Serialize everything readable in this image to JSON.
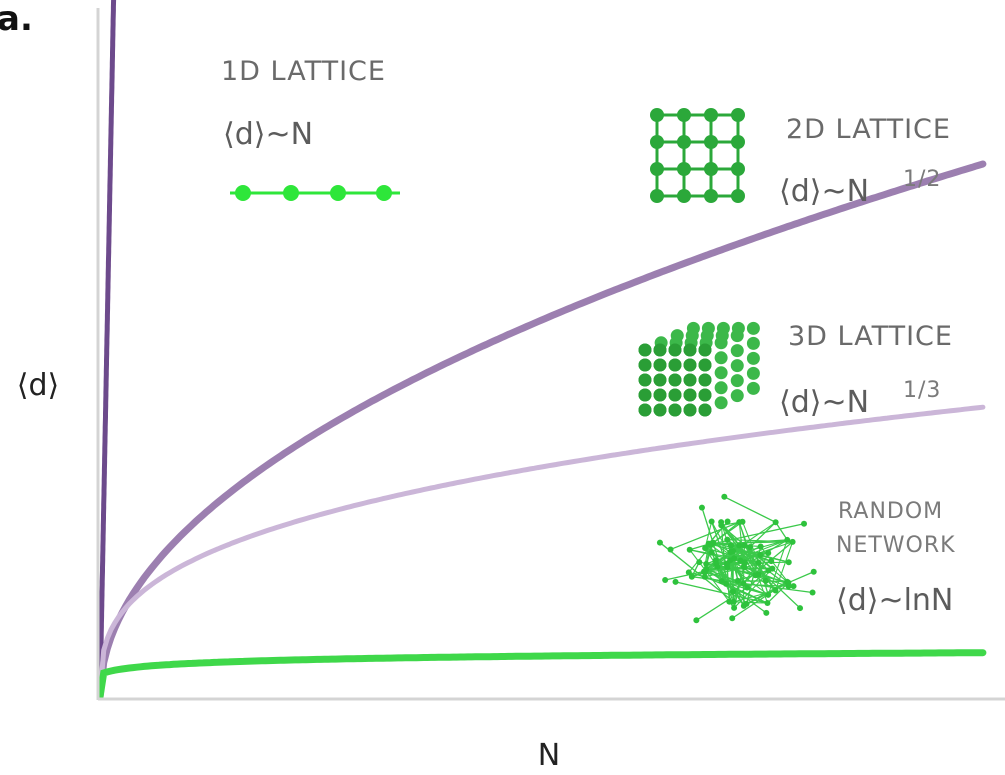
{
  "panel_label": "a.",
  "chart_data": {
    "type": "line",
    "xlabel": "N",
    "ylabel": "⟨d⟩",
    "grid": false,
    "legend": "none",
    "series": [
      {
        "name": "1D LATTICE",
        "label_main": "1D LATTICE",
        "formula": "⟨d⟩~N",
        "color": "#6d4a8c",
        "x": [
          0,
          1.0,
          1.5
        ],
        "y": [
          0,
          1.0,
          1.5
        ]
      },
      {
        "name": "2D LATTICE",
        "label_main": "2D LATTICE",
        "formula": "⟨d⟩~N",
        "exponent": "1/2",
        "color": "#9c7fb0",
        "x": [
          0,
          1,
          4,
          9,
          16,
          25,
          36,
          49,
          64,
          81
        ],
        "y": [
          0,
          1,
          2,
          3,
          4,
          5,
          6,
          7,
          8,
          9
        ]
      },
      {
        "name": "3D LATTICE",
        "label_main": "3D LATTICE",
        "formula": "⟨d⟩~N",
        "exponent": "1/3",
        "color": "#cbb6d8",
        "x": [
          0,
          1,
          8,
          27,
          64,
          81
        ],
        "y": [
          0,
          1,
          2,
          3,
          4,
          4.33
        ]
      },
      {
        "name": "RANDOM NETWORK",
        "label_lines": [
          "RANDOM",
          "NETWORK"
        ],
        "formula": "⟨d⟩~lnN",
        "color": "#3fd84a",
        "x": [
          0,
          1,
          5,
          10,
          20,
          40,
          81
        ],
        "y": [
          0,
          0.5,
          0.9,
          1.0,
          1.1,
          1.2,
          1.3
        ]
      }
    ]
  }
}
